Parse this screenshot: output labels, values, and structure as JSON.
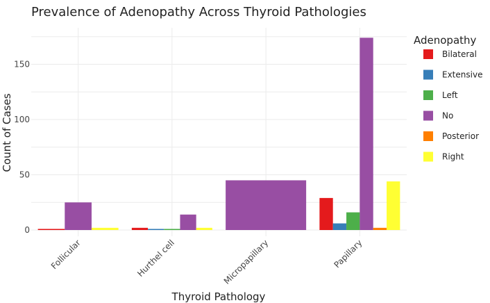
{
  "chart_data": {
    "type": "bar",
    "title": "Prevalence of Adenopathy Across Thyroid Pathologies",
    "xlabel": "Thyroid Pathology",
    "ylabel": "Count of Cases",
    "categories": [
      "Follicular",
      "Hurthel cell",
      "Micropapillary",
      "Papillary"
    ],
    "ylim": [
      0,
      183
    ],
    "yticks": [
      0,
      50,
      100,
      150
    ],
    "grid": true,
    "legend": {
      "title": "Adenopathy",
      "placement": "right"
    },
    "series": [
      {
        "name": "Bilateral",
        "color": "#e41a1c",
        "values": [
          1,
          2,
          null,
          29
        ]
      },
      {
        "name": "Extensive",
        "color": "#377eb8",
        "values": [
          null,
          1,
          null,
          6
        ]
      },
      {
        "name": "Left",
        "color": "#4daf4a",
        "values": [
          null,
          1,
          null,
          16
        ]
      },
      {
        "name": "No",
        "color": "#984ea3",
        "values": [
          25,
          14,
          45,
          174
        ]
      },
      {
        "name": "Posterior",
        "color": "#ff7f00",
        "values": [
          null,
          null,
          null,
          2
        ]
      },
      {
        "name": "Right",
        "color": "#ffff33",
        "values": [
          2,
          2,
          null,
          44
        ]
      }
    ]
  }
}
